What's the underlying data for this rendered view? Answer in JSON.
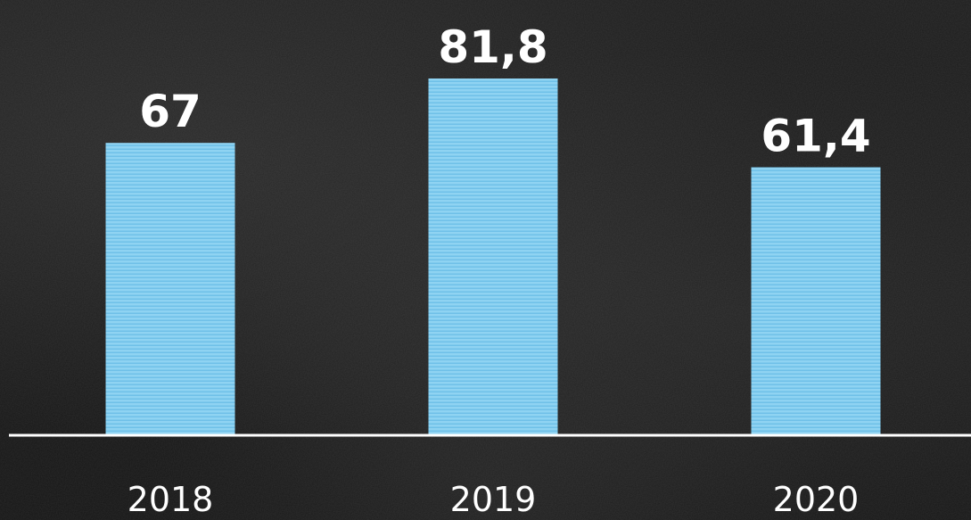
{
  "chart_data": {
    "type": "bar",
    "categories": [
      "2018",
      "2019",
      "2020"
    ],
    "values": [
      67,
      81.8,
      61.4
    ],
    "value_labels": [
      "67",
      "81,8",
      "61,4"
    ],
    "title": "",
    "xlabel": "",
    "ylabel": "",
    "ylim": [
      0,
      81.8
    ],
    "grid": false,
    "legend": "none",
    "colors": {
      "bar": "#8fd3f2",
      "bar_stripe": "#6fc0e8",
      "baseline": "#ffffff",
      "text": "#ffffff",
      "background": "#161616"
    }
  }
}
